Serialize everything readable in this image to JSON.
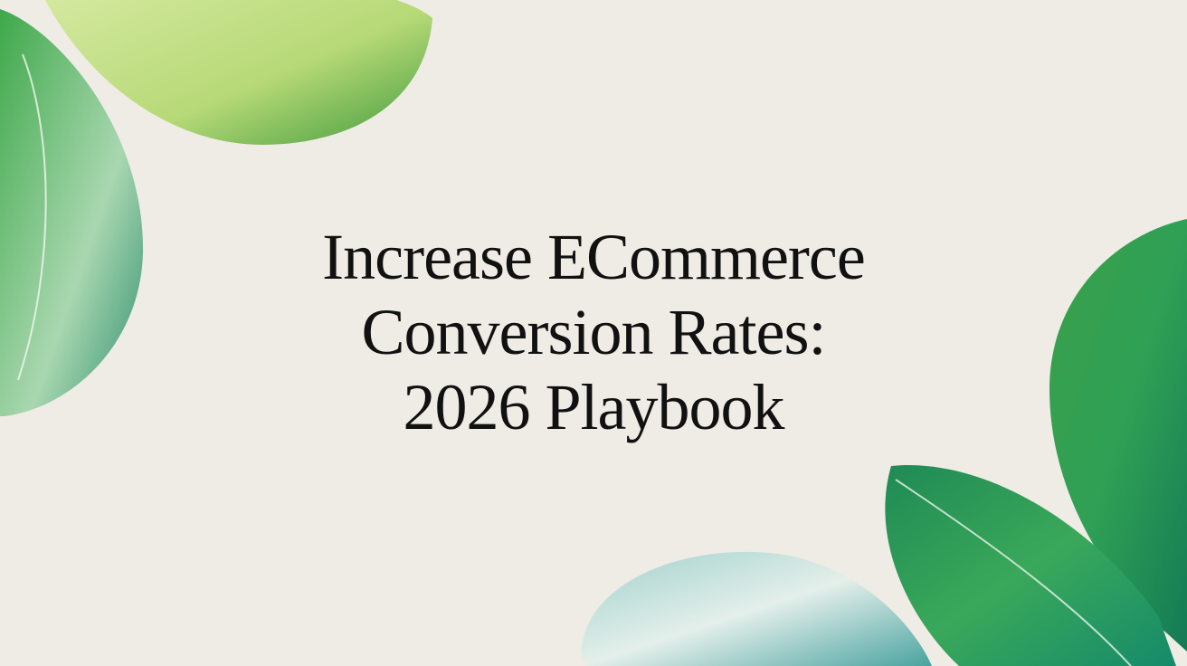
{
  "hero": {
    "title_lines": [
      "Increase ECommerce",
      "Conversion Rates:",
      "2026 Playbook"
    ],
    "background_color": "#efece6",
    "text_color": "#111111",
    "decoration": "watercolor-green-leaves"
  }
}
